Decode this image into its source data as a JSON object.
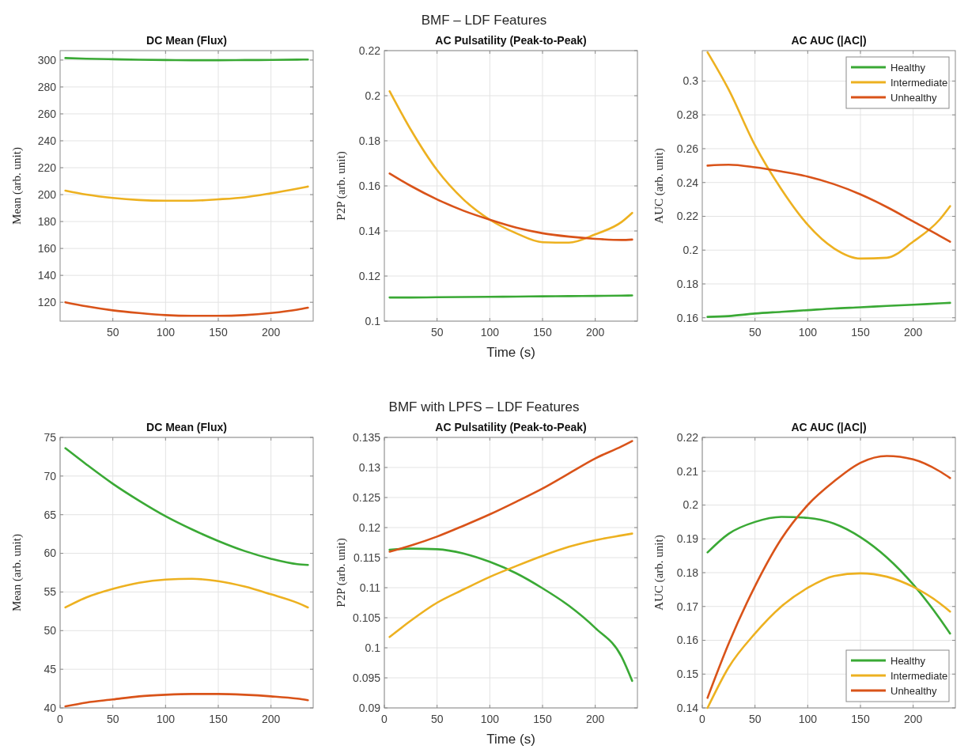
{
  "chart_data": [
    {
      "type": "line",
      "title": "DC Mean (Flux)",
      "ylabel": "Mean (arb. unit)",
      "annotations": [
        "BMF – LDF Features"
      ],
      "x": [
        5,
        25,
        50,
        75,
        100,
        125,
        150,
        175,
        200,
        225,
        235
      ],
      "xlim": [
        0,
        240
      ],
      "xticks": [
        50,
        100,
        150,
        200
      ],
      "ylim": [
        106,
        307
      ],
      "yticks": [
        120,
        140,
        160,
        180,
        200,
        220,
        240,
        260,
        280,
        300
      ],
      "grid": true,
      "series": [
        {
          "color": "#3aa935",
          "values": [
            301.5,
            301,
            300.6,
            300.2,
            300,
            299.9,
            299.9,
            300,
            300.1,
            300.3,
            300.4
          ]
        },
        {
          "color": "#edb120",
          "values": [
            203,
            200,
            197.5,
            196,
            195.5,
            195.5,
            196.5,
            198,
            201,
            204.5,
            206
          ]
        },
        {
          "color": "#d95319",
          "values": [
            120,
            117,
            114,
            112,
            110.5,
            110,
            110,
            110.5,
            112,
            114.5,
            116
          ]
        }
      ]
    },
    {
      "type": "line",
      "title": "AC Pulsatility (Peak-to-Peak)",
      "ylabel": "P2P (arb. unit)",
      "xlabel": "Time (s)",
      "x": [
        5,
        25,
        50,
        75,
        100,
        125,
        150,
        175,
        200,
        225,
        235
      ],
      "xlim": [
        0,
        240
      ],
      "xticks": [
        50,
        100,
        150,
        200
      ],
      "ylim": [
        0.1,
        0.22
      ],
      "yticks": [
        0.1,
        0.12,
        0.14,
        0.16,
        0.18,
        0.2,
        0.22
      ],
      "grid": true,
      "series": [
        {
          "color": "#3aa935",
          "values": [
            0.1105,
            0.1105,
            0.1106,
            0.1107,
            0.1108,
            0.1109,
            0.111,
            0.1111,
            0.1112,
            0.1113,
            0.1114
          ]
        },
        {
          "color": "#edb120",
          "values": [
            0.202,
            0.185,
            0.167,
            0.154,
            0.145,
            0.139,
            0.135,
            0.1348,
            0.1385,
            0.144,
            0.148
          ]
        },
        {
          "color": "#d95319",
          "values": [
            0.1655,
            0.16,
            0.154,
            0.149,
            0.145,
            0.1415,
            0.139,
            0.1375,
            0.1365,
            0.136,
            0.1362
          ]
        }
      ]
    },
    {
      "type": "line",
      "title": "AC AUC (|AC|)",
      "ylabel": "AUC (arb. unit)",
      "x": [
        5,
        25,
        50,
        75,
        100,
        125,
        150,
        175,
        200,
        225,
        235
      ],
      "xlim": [
        0,
        240
      ],
      "xticks": [
        50,
        100,
        150,
        200
      ],
      "ylim": [
        0.158,
        0.318
      ],
      "yticks": [
        0.16,
        0.18,
        0.2,
        0.22,
        0.24,
        0.26,
        0.28,
        0.3
      ],
      "grid": true,
      "legend": "top right",
      "series": [
        {
          "name": "Healthy",
          "color": "#3aa935",
          "values": [
            0.1605,
            0.161,
            0.1625,
            0.1635,
            0.1645,
            0.1655,
            0.1662,
            0.167,
            0.1677,
            0.1685,
            0.1688
          ]
        },
        {
          "name": "Intermediate",
          "color": "#edb120",
          "values": [
            0.317,
            0.295,
            0.262,
            0.236,
            0.215,
            0.201,
            0.195,
            0.1955,
            0.205,
            0.218,
            0.226
          ]
        },
        {
          "name": "Unhealthy",
          "color": "#d95319",
          "values": [
            0.25,
            0.2505,
            0.249,
            0.2465,
            0.2435,
            0.239,
            0.233,
            0.2255,
            0.217,
            0.2085,
            0.205
          ]
        }
      ]
    },
    {
      "type": "line",
      "title": "DC Mean (Flux)",
      "ylabel": "Mean (arb. unit)",
      "annotations": [
        "BMF with LPFS – LDF Features"
      ],
      "x": [
        5,
        25,
        50,
        75,
        100,
        125,
        150,
        175,
        200,
        225,
        235
      ],
      "xlim": [
        0,
        240
      ],
      "xticks": [
        0,
        50,
        100,
        150,
        200
      ],
      "ylim": [
        40,
        75
      ],
      "yticks": [
        40,
        45,
        50,
        55,
        60,
        65,
        70,
        75
      ],
      "grid": true,
      "series": [
        {
          "color": "#3aa935",
          "values": [
            73.6,
            71.5,
            69,
            66.8,
            64.8,
            63.1,
            61.6,
            60.3,
            59.3,
            58.6,
            58.5
          ]
        },
        {
          "color": "#edb120",
          "values": [
            53,
            54.3,
            55.4,
            56.2,
            56.6,
            56.7,
            56.4,
            55.7,
            54.7,
            53.6,
            53
          ]
        },
        {
          "color": "#d95319",
          "values": [
            40.2,
            40.7,
            41.1,
            41.5,
            41.7,
            41.8,
            41.8,
            41.7,
            41.5,
            41.2,
            41
          ]
        }
      ]
    },
    {
      "type": "line",
      "title": "AC Pulsatility (Peak-to-Peak)",
      "ylabel": "P2P (arb. unit)",
      "xlabel": "Time (s)",
      "x": [
        5,
        25,
        50,
        75,
        100,
        125,
        150,
        175,
        200,
        225,
        235
      ],
      "xlim": [
        0,
        240
      ],
      "xticks": [
        0,
        50,
        100,
        150,
        200
      ],
      "ylim": [
        0.09,
        0.135
      ],
      "yticks": [
        0.09,
        0.095,
        0.1,
        0.105,
        0.11,
        0.115,
        0.12,
        0.125,
        0.13,
        0.135
      ],
      "grid": true,
      "series": [
        {
          "color": "#3aa935",
          "values": [
            0.1163,
            0.1165,
            0.1164,
            0.1157,
            0.1143,
            0.1124,
            0.1099,
            0.107,
            0.1033,
            0.0985,
            0.0945
          ]
        },
        {
          "color": "#edb120",
          "values": [
            0.1018,
            0.1045,
            0.1075,
            0.1097,
            0.1118,
            0.1136,
            0.1153,
            0.1168,
            0.1179,
            0.1187,
            0.119
          ]
        },
        {
          "color": "#d95319",
          "values": [
            0.116,
            0.117,
            0.1185,
            0.1203,
            0.1222,
            0.1243,
            0.1265,
            0.129,
            0.1315,
            0.1335,
            0.1344
          ]
        }
      ]
    },
    {
      "type": "line",
      "title": "AC AUC (|AC|)",
      "ylabel": "AUC (arb. unit)",
      "x": [
        5,
        25,
        50,
        75,
        100,
        125,
        150,
        175,
        200,
        225,
        235
      ],
      "xlim": [
        0,
        240
      ],
      "xticks": [
        0,
        50,
        100,
        150,
        200
      ],
      "ylim": [
        0.14,
        0.22
      ],
      "yticks": [
        0.14,
        0.15,
        0.16,
        0.17,
        0.18,
        0.19,
        0.2,
        0.21,
        0.22
      ],
      "grid": true,
      "legend": "bottom right",
      "series": [
        {
          "name": "Healthy",
          "color": "#3aa935",
          "values": [
            0.186,
            0.1915,
            0.195,
            0.1965,
            0.1962,
            0.1945,
            0.1905,
            0.1845,
            0.1765,
            0.1665,
            0.162
          ]
        },
        {
          "name": "Intermediate",
          "color": "#edb120",
          "values": [
            0.14,
            0.152,
            0.162,
            0.17,
            0.1755,
            0.179,
            0.1798,
            0.1788,
            0.1758,
            0.171,
            0.1685
          ]
        },
        {
          "name": "Unhealthy",
          "color": "#d95319",
          "values": [
            0.143,
            0.159,
            0.176,
            0.19,
            0.2,
            0.207,
            0.2125,
            0.2145,
            0.2135,
            0.21,
            0.208
          ]
        }
      ]
    }
  ]
}
